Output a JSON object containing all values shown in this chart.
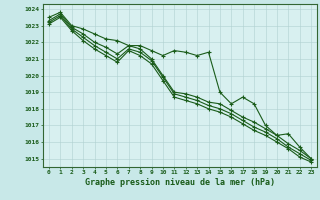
{
  "title": "Graphe pression niveau de la mer (hPa)",
  "background_color": "#c8e8e8",
  "plot_bg_color": "#d8f0f0",
  "grid_color": "#b0d0d0",
  "line_color": "#1a5c1a",
  "border_color": "#336633",
  "x_values": [
    0,
    1,
    2,
    3,
    4,
    5,
    6,
    7,
    8,
    9,
    10,
    11,
    12,
    13,
    14,
    15,
    16,
    17,
    18,
    19,
    20,
    21,
    22,
    23
  ],
  "series": [
    [
      1023.5,
      1023.8,
      1023.0,
      1022.8,
      1022.5,
      1022.2,
      1022.1,
      1021.8,
      1021.8,
      1021.5,
      1021.2,
      1021.5,
      1021.4,
      1021.2,
      1021.4,
      1019.0,
      1018.3,
      1018.7,
      1018.3,
      1017.0,
      1016.4,
      1016.5,
      1015.7,
      1015.0
    ],
    [
      1023.3,
      1023.7,
      1022.9,
      1022.5,
      1022.0,
      1021.7,
      1021.3,
      1021.8,
      1021.6,
      1021.0,
      1020.0,
      1019.0,
      1018.9,
      1018.7,
      1018.4,
      1018.3,
      1017.9,
      1017.5,
      1017.2,
      1016.8,
      1016.4,
      1015.9,
      1015.5,
      1015.0
    ],
    [
      1023.2,
      1023.6,
      1022.8,
      1022.3,
      1021.8,
      1021.4,
      1021.0,
      1021.6,
      1021.4,
      1020.9,
      1019.9,
      1018.9,
      1018.7,
      1018.5,
      1018.2,
      1018.0,
      1017.7,
      1017.3,
      1016.9,
      1016.6,
      1016.2,
      1015.7,
      1015.3,
      1014.9
    ],
    [
      1023.1,
      1023.5,
      1022.7,
      1022.1,
      1021.6,
      1021.2,
      1020.8,
      1021.5,
      1021.2,
      1020.7,
      1019.7,
      1018.7,
      1018.5,
      1018.3,
      1018.0,
      1017.8,
      1017.5,
      1017.1,
      1016.7,
      1016.4,
      1016.0,
      1015.6,
      1015.1,
      1014.8
    ]
  ],
  "ylim": [
    1014.5,
    1024.3
  ],
  "yticks": [
    1015,
    1016,
    1017,
    1018,
    1019,
    1020,
    1021,
    1022,
    1023,
    1024
  ],
  "marker": "+",
  "marker_size": 3,
  "linewidth": 0.8
}
